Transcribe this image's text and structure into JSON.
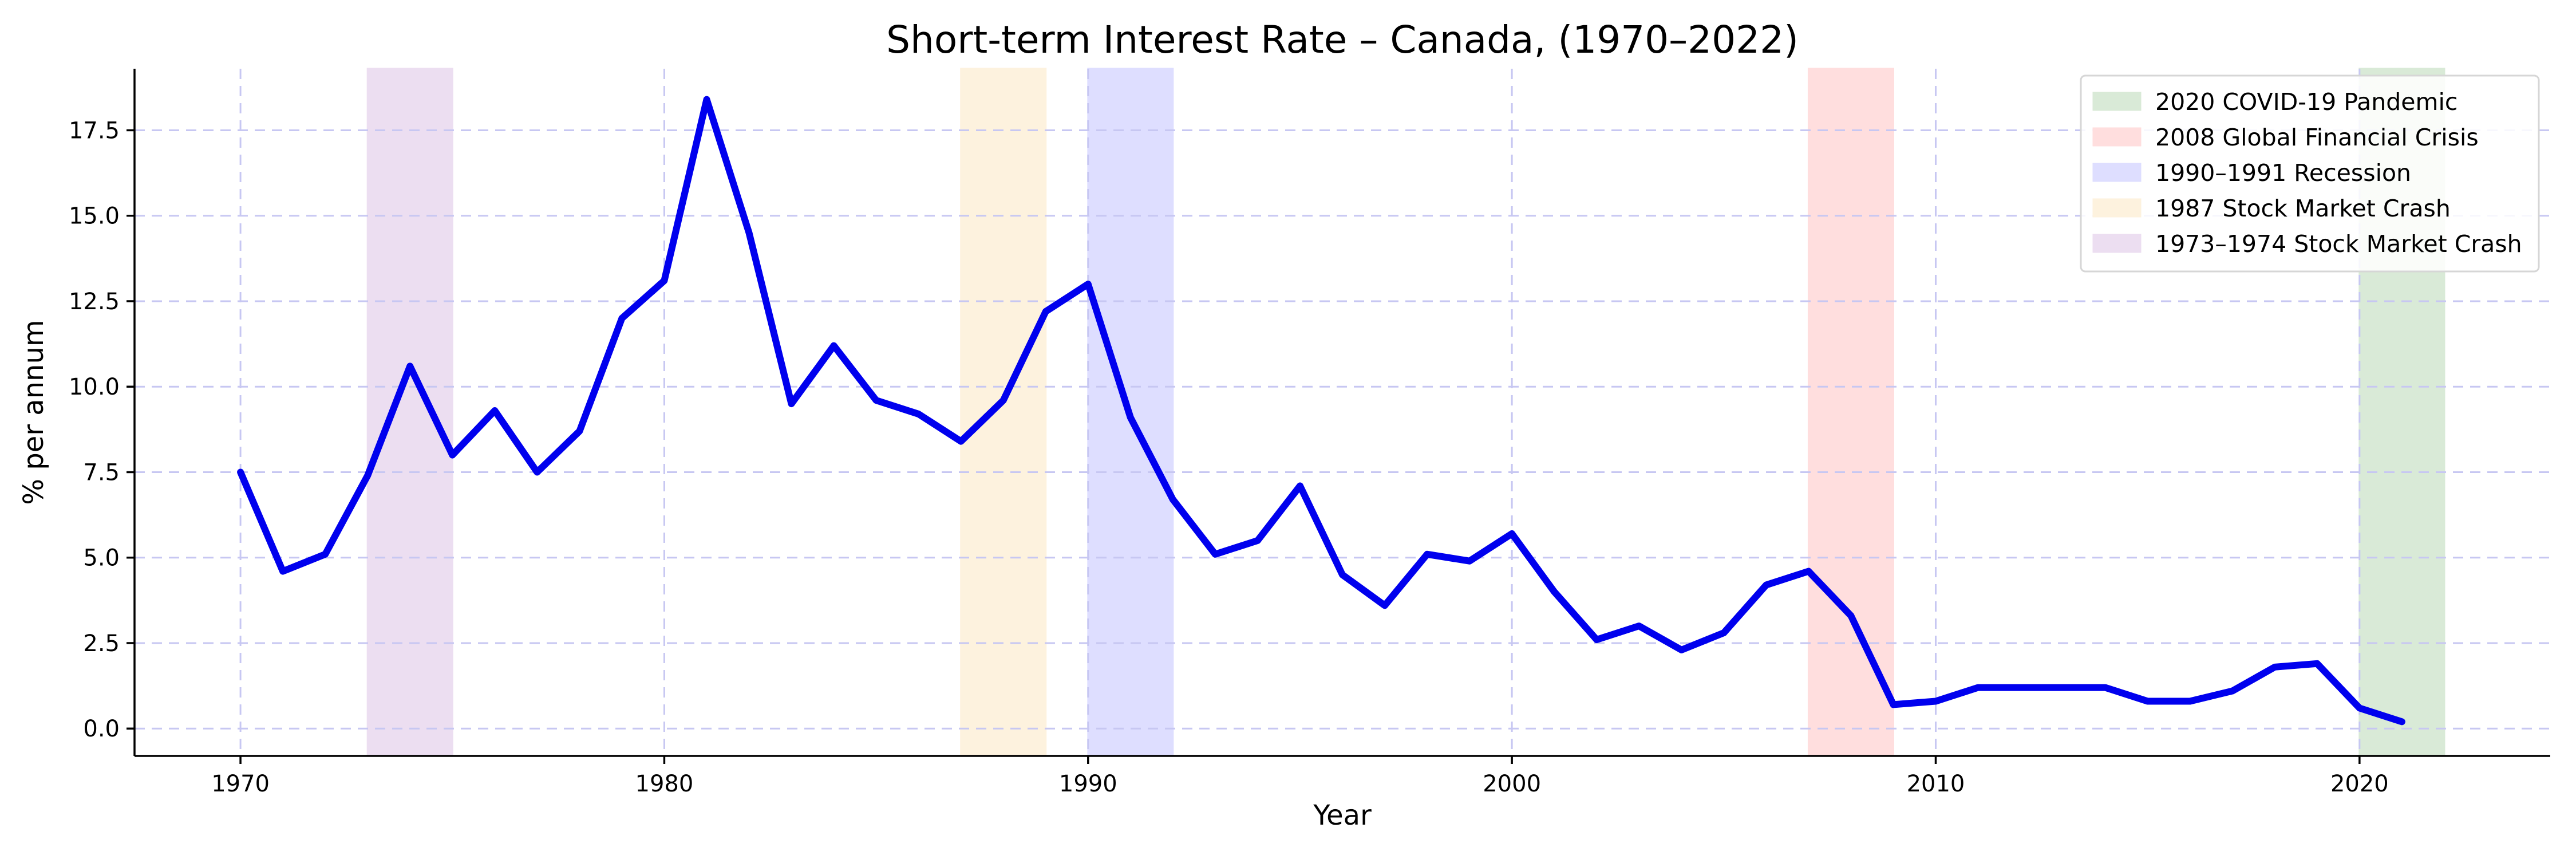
{
  "chart_data": {
    "type": "line",
    "title": "Short-term Interest Rate – Canada, (1970–2022)",
    "xlabel": "Year",
    "ylabel": "% per annum",
    "xlim": [
      1967.5,
      2024.5
    ],
    "ylim": [
      -0.8,
      19.3
    ],
    "xticks": [
      1970,
      1980,
      1990,
      2000,
      2010,
      2020
    ],
    "yticks": [
      0.0,
      2.5,
      5.0,
      7.5,
      10.0,
      12.5,
      15.0,
      17.5
    ],
    "ytick_labels": [
      "0.0",
      "2.5",
      "5.0",
      "7.5",
      "10.0",
      "12.5",
      "15.0",
      "17.5"
    ],
    "grid": true,
    "legend_position": "top-right",
    "series": [
      {
        "color": "#0000ee",
        "x": [
          1970,
          1971,
          1972,
          1973,
          1974,
          1975,
          1976,
          1977,
          1978,
          1979,
          1980,
          1981,
          1982,
          1983,
          1984,
          1985,
          1986,
          1987,
          1988,
          1989,
          1990,
          1991,
          1992,
          1993,
          1994,
          1995,
          1996,
          1997,
          1998,
          1999,
          2000,
          2001,
          2002,
          2003,
          2004,
          2005,
          2006,
          2007,
          2008,
          2009,
          2010,
          2011,
          2012,
          2013,
          2014,
          2015,
          2016,
          2017,
          2018,
          2019,
          2020,
          2021
        ],
        "values": [
          7.5,
          4.6,
          5.1,
          7.4,
          10.6,
          8.0,
          9.3,
          7.5,
          8.7,
          12.0,
          13.1,
          18.4,
          14.5,
          9.5,
          11.2,
          9.6,
          9.2,
          8.4,
          9.6,
          12.2,
          13.0,
          9.1,
          6.7,
          5.1,
          5.5,
          7.1,
          4.5,
          3.6,
          5.1,
          4.9,
          5.7,
          4.0,
          2.6,
          3.0,
          2.3,
          2.8,
          4.2,
          4.6,
          3.3,
          0.7,
          0.8,
          1.2,
          1.2,
          1.2,
          1.2,
          0.8,
          0.8,
          1.1,
          1.8,
          1.9,
          0.6,
          0.2
        ]
      }
    ],
    "shaded_periods": [
      {
        "label": "2020 COVID-19 Pandemic",
        "start": 2020,
        "end": 2022,
        "color": "#d9ead7"
      },
      {
        "label": "2008 Global Financial Crisis",
        "start": 2007,
        "end": 2009,
        "color": "#ffdede"
      },
      {
        "label": "1990–1991 Recession",
        "start": 1990,
        "end": 1992,
        "color": "#dedeff"
      },
      {
        "label": "1987 Stock Market Crash",
        "start": 1987,
        "end": 1989,
        "color": "#fdf2de"
      },
      {
        "label": "1973–1974 Stock Market Crash",
        "start": 1973,
        "end": 1975,
        "color": "#ecdef1"
      }
    ]
  }
}
